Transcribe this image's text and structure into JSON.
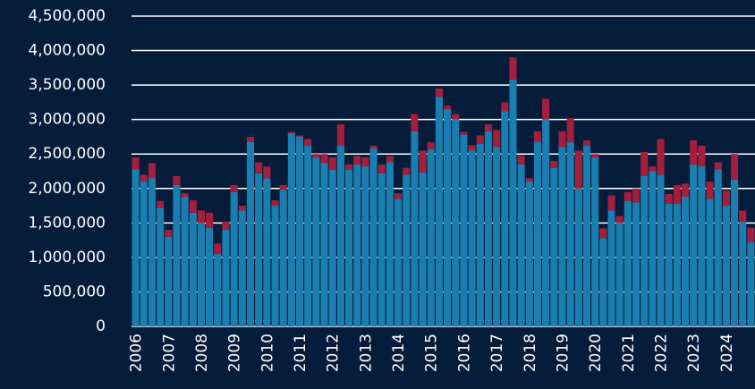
{
  "chart_data": {
    "type": "stacked_bar",
    "categories": [
      "2006",
      null,
      null,
      null,
      "2007",
      null,
      null,
      null,
      "2008",
      null,
      null,
      null,
      "2009",
      null,
      null,
      null,
      "2010",
      null,
      null,
      null,
      "2011",
      null,
      null,
      null,
      "2012",
      null,
      null,
      null,
      "2013",
      null,
      null,
      null,
      "2014",
      null,
      null,
      null,
      "2015",
      null,
      null,
      null,
      "2016",
      null,
      null,
      null,
      "2017",
      null,
      null,
      null,
      "2018",
      null,
      null,
      null,
      "2019",
      null,
      null,
      null,
      "2020",
      null,
      null,
      null,
      "2021",
      null,
      null,
      null,
      "2022",
      null,
      null,
      null,
      "2023",
      null,
      null,
      null,
      "2024",
      null,
      null,
      null
    ],
    "series": [
      {
        "color": "#1a7fb0",
        "values": [
          2280000,
          2100000,
          2150000,
          1720000,
          1300000,
          2050000,
          1880000,
          1650000,
          1500000,
          1430000,
          1050000,
          1400000,
          1950000,
          1680000,
          2680000,
          2220000,
          2150000,
          1750000,
          1980000,
          2800000,
          2750000,
          2620000,
          2450000,
          2370000,
          2270000,
          2620000,
          2270000,
          2350000,
          2320000,
          2580000,
          2220000,
          2380000,
          1850000,
          2200000,
          2830000,
          2230000,
          2570000,
          3330000,
          3150000,
          3000000,
          2780000,
          2550000,
          2650000,
          2830000,
          2600000,
          3120000,
          3580000,
          2350000,
          2100000,
          2680000,
          3000000,
          2300000,
          2600000,
          2670000,
          2000000,
          2620000,
          2450000,
          1280000,
          1680000,
          1500000,
          1820000,
          1800000,
          2180000,
          2250000,
          2200000,
          1780000,
          1780000,
          1880000,
          2350000,
          2320000,
          1850000,
          2280000,
          1750000,
          2130000,
          1520000,
          1220000
        ]
      },
      {
        "color": "#a31f3c",
        "values": [
          170000,
          100000,
          220000,
          100000,
          100000,
          130000,
          50000,
          180000,
          180000,
          220000,
          150000,
          120000,
          100000,
          70000,
          70000,
          160000,
          170000,
          80000,
          70000,
          20000,
          20000,
          100000,
          50000,
          130000,
          180000,
          310000,
          80000,
          120000,
          130000,
          40000,
          130000,
          90000,
          80000,
          100000,
          250000,
          320000,
          100000,
          120000,
          50000,
          80000,
          40000,
          80000,
          120000,
          100000,
          250000,
          130000,
          320000,
          130000,
          50000,
          150000,
          300000,
          100000,
          230000,
          350000,
          550000,
          80000,
          50000,
          140000,
          220000,
          100000,
          130000,
          200000,
          350000,
          70000,
          520000,
          140000,
          270000,
          190000,
          350000,
          300000,
          250000,
          100000,
          220000,
          370000,
          160000,
          210000
        ]
      }
    ],
    "ylim": [
      0,
      4500000
    ],
    "yticks": [
      0,
      {
        "value": 500000,
        "label": "500,000"
      },
      {
        "value": 1000000,
        "label": "1,000,000"
      },
      {
        "value": 1500000,
        "label": "1,500,000"
      },
      {
        "value": 2000000,
        "label": "2,000,000"
      },
      {
        "value": 2500000,
        "label": "2,500,000"
      },
      {
        "value": 3000000,
        "label": "3,000,000"
      },
      {
        "value": 3500000,
        "label": "3,500,000"
      },
      {
        "value": 4000000,
        "label": "4,000,000"
      },
      {
        "value": 4500000,
        "label": "4,500,000"
      }
    ],
    "grid": true
  }
}
